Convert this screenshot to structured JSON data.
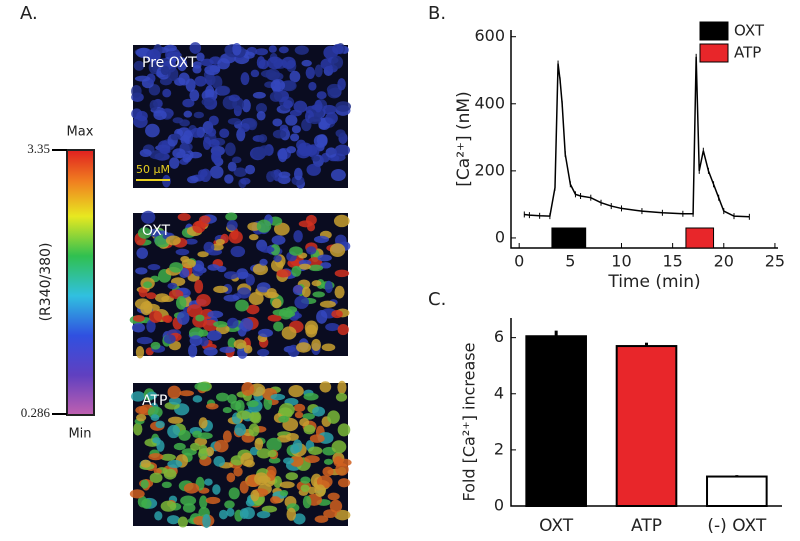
{
  "panel_a": {
    "panel_label": "A.",
    "colorbar_title": "(R340/380)",
    "colorbar_max": "Max",
    "colorbar_min": "Min",
    "colorbar_high": "3.35",
    "colorbar_low": "0.286",
    "scale_bar": "50 μM",
    "images": [
      "Pre OXT",
      "OXT",
      "ATP"
    ]
  },
  "chart_data": [
    {
      "type": "line",
      "panel_label": "B.",
      "xlabel": "Time (min)",
      "ylabel": "[Ca²⁺] (nM)",
      "color": "#000000",
      "x": [
        0.5,
        1,
        2,
        3,
        3.5,
        3.8,
        4.0,
        4.2,
        4.5,
        5,
        5.5,
        6,
        7,
        8,
        9,
        10,
        12,
        14,
        16,
        17,
        17.3,
        17.6,
        18,
        18.5,
        19,
        19.5,
        20,
        21,
        22.5
      ],
      "values": [
        70,
        68,
        66,
        65,
        150,
        520,
        470,
        400,
        250,
        160,
        130,
        125,
        120,
        105,
        95,
        88,
        80,
        75,
        72,
        72,
        540,
        200,
        260,
        200,
        160,
        120,
        80,
        65,
        63
      ],
      "intervals": [
        {
          "name": "OXT",
          "color": "#000000",
          "start": 3.2,
          "end": 6.5
        },
        {
          "name": "ATP",
          "color": "#e8262a",
          "start": 16.3,
          "end": 19.0
        }
      ],
      "xlim": [
        -0.8,
        25.3
      ],
      "xticks": [
        0,
        5,
        10,
        15,
        20,
        25
      ],
      "ylim": [
        -30,
        620
      ],
      "yticks": [
        0,
        200,
        400,
        600
      ]
    },
    {
      "type": "bar",
      "panel_label": "C.",
      "ylabel": "Fold [Ca²⁺] increase",
      "categories": [
        "OXT",
        "ATP",
        "(-) OXT"
      ],
      "values": [
        6.05,
        5.7,
        1.05
      ],
      "errors": [
        0.2,
        0.12,
        0.05
      ],
      "colors": [
        "#000000",
        "#e8262a",
        "#ffffff"
      ],
      "ylim": [
        0,
        6.7
      ],
      "yticks": [
        0,
        2,
        4,
        6
      ]
    }
  ]
}
